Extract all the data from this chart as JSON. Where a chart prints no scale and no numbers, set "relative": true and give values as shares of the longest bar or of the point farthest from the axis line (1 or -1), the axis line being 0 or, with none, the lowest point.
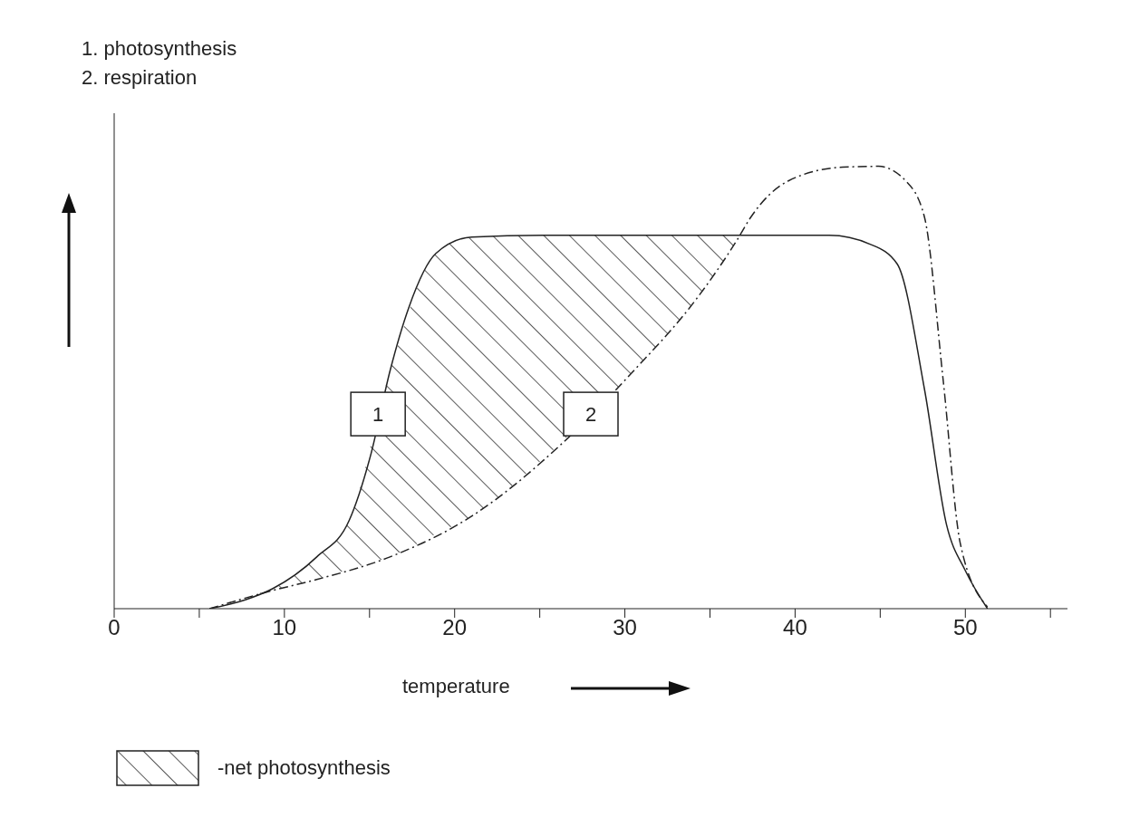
{
  "chart_data": {
    "type": "line",
    "relative": true,
    "xlabel": "temperature",
    "xlim": [
      0,
      56
    ],
    "xticks": [
      0,
      {
        "value": 5,
        "label": null
      },
      10,
      {
        "value": 15,
        "label": null
      },
      20,
      {
        "value": 25,
        "label": null
      },
      30,
      {
        "value": 35,
        "label": null
      },
      40,
      {
        "value": 45,
        "label": null
      },
      50,
      {
        "value": 55,
        "label": null
      }
    ],
    "tick_labels": "x",
    "grid": false,
    "legend": "bottom",
    "marker": "none",
    "annotations": [
      "1. photosynthesis",
      "2. respiration",
      {
        "text": "1",
        "x": 15.5,
        "y": 0.44
      },
      {
        "text": "2",
        "x": 28,
        "y": 0.44
      }
    ],
    "series": [
      {
        "type": "line",
        "color": "#222222",
        "line_style": "solid",
        "x": [
          5.6,
          7.7,
          9.3,
          11.9,
          13.8,
          15.1,
          16.2,
          17.3,
          18.9,
          21,
          25.2,
          42,
          44.4,
          46,
          47.6,
          48.9,
          50,
          51.3
        ],
        "values": [
          0,
          0.02,
          0.045,
          0.117,
          0.199,
          0.352,
          0.537,
          0.68,
          0.803,
          0.84,
          0.844,
          0.844,
          0.824,
          0.779,
          0.496,
          0.189,
          0.086,
          0
        ]
      },
      {
        "type": "line",
        "color": "#222222",
        "line_style": "dashed",
        "x": [
          5.6,
          9.3,
          11.9,
          16.2,
          21,
          26.3,
          30.5,
          34.2,
          36.6,
          37.4,
          39.6,
          42.8,
          44.9,
          46.5,
          47.6,
          48.7,
          49.7,
          51.3
        ],
        "values": [
          0,
          0.041,
          0.066,
          0.117,
          0.209,
          0.373,
          0.537,
          0.7,
          0.834,
          0.885,
          0.967,
          0.998,
          1,
          0.967,
          0.885,
          0.516,
          0.148,
          0.004
        ]
      },
      {
        "type": "area",
        "name": "-net photosynthesis",
        "color": "#222222",
        "x": [
          8.5,
          9.3,
          11.9,
          13.8,
          16.2,
          18.9,
          21,
          25.2,
          30.5,
          34.2,
          36.6
        ],
        "values": [
          0.035,
          0.045,
          0.117,
          0.199,
          0.537,
          0.803,
          0.84,
          0.844,
          0.844,
          0.844,
          0.844
        ]
      }
    ]
  }
}
